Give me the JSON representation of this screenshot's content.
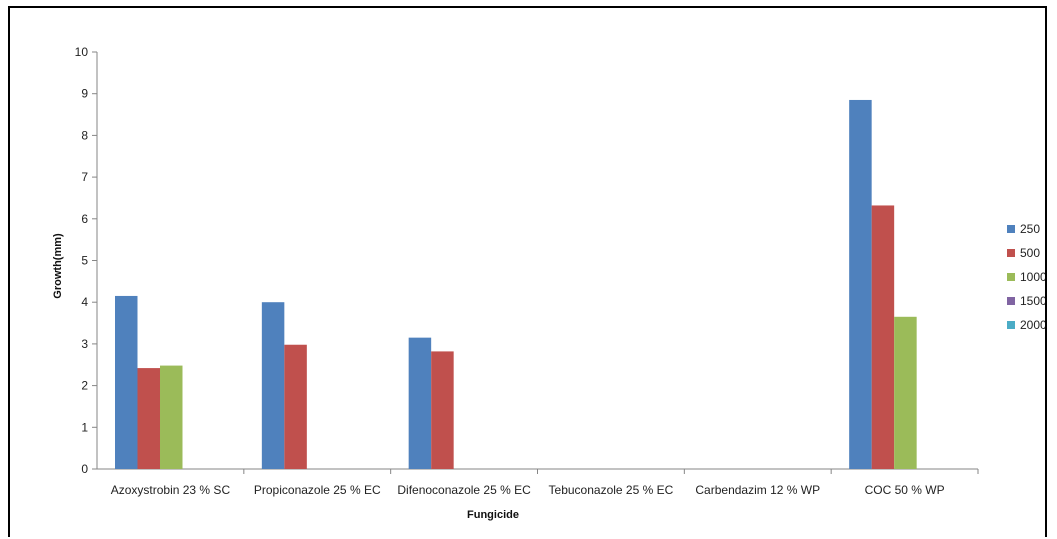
{
  "chart_data": {
    "type": "bar",
    "title": "",
    "xlabel": "Fungicide",
    "ylabel": "Growth(mm)",
    "ylim": [
      0,
      10
    ],
    "yticks": [
      0,
      1,
      2,
      3,
      4,
      5,
      6,
      7,
      8,
      9,
      10
    ],
    "grid": false,
    "legend_position": "right",
    "categories": [
      "Azoxystrobin 23 % SC",
      "Propiconazole 25 % EC",
      "Difenoconazole 25 % EC",
      "Tebuconazole 25 % EC",
      "Carbendazim 12 % WP",
      "COC 50 % WP"
    ],
    "series": [
      {
        "name": "250",
        "color": "#4f81bd",
        "values": [
          4.15,
          4.0,
          3.15,
          0,
          0,
          8.85
        ]
      },
      {
        "name": "500",
        "color": "#c0504d",
        "values": [
          2.42,
          2.98,
          2.82,
          0,
          0,
          6.32
        ]
      },
      {
        "name": "1000",
        "color": "#9bbb59",
        "values": [
          2.48,
          0,
          0,
          0,
          0,
          3.65
        ]
      },
      {
        "name": "1500",
        "color": "#8064a2",
        "values": [
          0,
          0,
          0,
          0,
          0,
          0
        ]
      },
      {
        "name": "2000",
        "color": "#4bacc6",
        "values": [
          0,
          0,
          0,
          0,
          0,
          0
        ]
      }
    ]
  }
}
